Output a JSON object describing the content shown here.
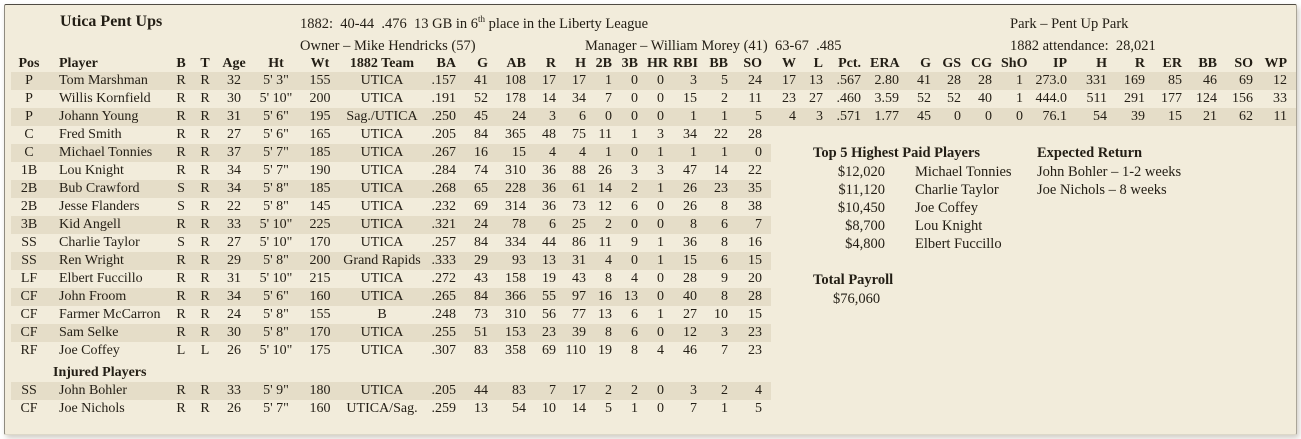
{
  "header": {
    "team_name": "Utica Pent Ups",
    "record_prefix": "1882:  40-44  .476  13 GB in 6",
    "record_sup": "th",
    "record_suffix": " place in the Liberty League",
    "park": "Park – Pent Up Park",
    "owner": "Owner – Mike Hendricks (57)",
    "manager": "Manager – William Morey (41)  63-67  .485",
    "attendance": "1882 attendance:  28,021"
  },
  "roster": {
    "columns": [
      "Pos",
      "Player",
      "B",
      "T",
      "Age",
      "Ht",
      "Wt",
      "1882 Team",
      "BA",
      "G",
      "AB",
      "R",
      "H",
      "2B",
      "3B",
      "HR",
      "RBI",
      "BB",
      "SO",
      "W",
      "L",
      "Pct.",
      "ERA",
      "G",
      "GS",
      "CG",
      "ShO",
      "IP",
      "H",
      "R",
      "ER",
      "BB",
      "SO",
      "WP"
    ],
    "rows": [
      [
        "P",
        "Tom Marshman",
        "R",
        "R",
        "32",
        "5' 3\"",
        "155",
        "UTICA",
        ".157",
        "41",
        "108",
        "17",
        "17",
        "1",
        "0",
        "0",
        "3",
        "5",
        "24",
        "17",
        "13",
        ".567",
        "2.80",
        "41",
        "28",
        "28",
        "1",
        "273.0",
        "331",
        "169",
        "85",
        "46",
        "69",
        "12"
      ],
      [
        "P",
        "Willis Kornfield",
        "R",
        "R",
        "30",
        "5' 10\"",
        "200",
        "UTICA",
        ".191",
        "52",
        "178",
        "14",
        "34",
        "7",
        "0",
        "0",
        "15",
        "2",
        "11",
        "23",
        "27",
        ".460",
        "3.59",
        "52",
        "52",
        "40",
        "1",
        "444.0",
        "511",
        "291",
        "177",
        "124",
        "156",
        "33"
      ],
      [
        "P",
        "Johann Young",
        "R",
        "R",
        "31",
        "5' 6\"",
        "195",
        "Sag./UTICA",
        ".250",
        "45",
        "24",
        "3",
        "6",
        "0",
        "0",
        "0",
        "1",
        "1",
        "5",
        "4",
        "3",
        ".571",
        "1.77",
        "45",
        "0",
        "0",
        "0",
        "76.1",
        "54",
        "39",
        "15",
        "21",
        "62",
        "11"
      ],
      [
        "C",
        "Fred Smith",
        "R",
        "R",
        "27",
        "5' 6\"",
        "165",
        "UTICA",
        ".205",
        "84",
        "365",
        "48",
        "75",
        "11",
        "1",
        "3",
        "34",
        "22",
        "28",
        "",
        "",
        "",
        "",
        "",
        "",
        "",
        "",
        "",
        "",
        "",
        "",
        "",
        "",
        ""
      ],
      [
        "C",
        "Michael Tonnies",
        "R",
        "R",
        "37",
        "5' 7\"",
        "185",
        "UTICA",
        ".267",
        "16",
        "15",
        "4",
        "4",
        "1",
        "0",
        "1",
        "1",
        "1",
        "0",
        "",
        "",
        "",
        "",
        "",
        "",
        "",
        "",
        "",
        "",
        "",
        "",
        "",
        "",
        ""
      ],
      [
        "1B",
        "Lou Knight",
        "R",
        "R",
        "34",
        "5' 7\"",
        "190",
        "UTICA",
        ".284",
        "74",
        "310",
        "36",
        "88",
        "26",
        "3",
        "3",
        "47",
        "14",
        "22",
        "",
        "",
        "",
        "",
        "",
        "",
        "",
        "",
        "",
        "",
        "",
        "",
        "",
        "",
        ""
      ],
      [
        "2B",
        "Bub Crawford",
        "S",
        "R",
        "34",
        "5' 8\"",
        "185",
        "UTICA",
        ".268",
        "65",
        "228",
        "36",
        "61",
        "14",
        "2",
        "1",
        "26",
        "23",
        "35",
        "",
        "",
        "",
        "",
        "",
        "",
        "",
        "",
        "",
        "",
        "",
        "",
        "",
        "",
        ""
      ],
      [
        "2B",
        "Jesse Flanders",
        "S",
        "R",
        "22",
        "5' 8\"",
        "145",
        "UTICA",
        ".232",
        "69",
        "314",
        "36",
        "73",
        "12",
        "6",
        "0",
        "26",
        "8",
        "38",
        "",
        "",
        "",
        "",
        "",
        "",
        "",
        "",
        "",
        "",
        "",
        "",
        "",
        "",
        ""
      ],
      [
        "3B",
        "Kid Angell",
        "R",
        "R",
        "33",
        "5' 10\"",
        "225",
        "UTICA",
        ".321",
        "24",
        "78",
        "6",
        "25",
        "2",
        "0",
        "0",
        "8",
        "6",
        "7",
        "",
        "",
        "",
        "",
        "",
        "",
        "",
        "",
        "",
        "",
        "",
        "",
        "",
        "",
        ""
      ],
      [
        "SS",
        "Charlie Taylor",
        "S",
        "R",
        "27",
        "5' 10\"",
        "170",
        "UTICA",
        ".257",
        "84",
        "334",
        "44",
        "86",
        "11",
        "9",
        "1",
        "36",
        "8",
        "16",
        "",
        "",
        "",
        "",
        "",
        "",
        "",
        "",
        "",
        "",
        "",
        "",
        "",
        "",
        ""
      ],
      [
        "SS",
        "Ren Wright",
        "R",
        "R",
        "29",
        "5' 8\"",
        "200",
        "Grand Rapids",
        ".333",
        "29",
        "93",
        "13",
        "31",
        "4",
        "0",
        "1",
        "15",
        "6",
        "15",
        "",
        "",
        "",
        "",
        "",
        "",
        "",
        "",
        "",
        "",
        "",
        "",
        "",
        "",
        ""
      ],
      [
        "LF",
        "Elbert Fuccillo",
        "R",
        "R",
        "31",
        "5' 10\"",
        "215",
        "UTICA",
        ".272",
        "43",
        "158",
        "19",
        "43",
        "8",
        "4",
        "0",
        "28",
        "9",
        "20",
        "",
        "",
        "",
        "",
        "",
        "",
        "",
        "",
        "",
        "",
        "",
        "",
        "",
        "",
        ""
      ],
      [
        "CF",
        "John Froom",
        "R",
        "R",
        "34",
        "5' 6\"",
        "160",
        "UTICA",
        ".265",
        "84",
        "366",
        "55",
        "97",
        "16",
        "13",
        "0",
        "40",
        "8",
        "28",
        "",
        "",
        "",
        "",
        "",
        "",
        "",
        "",
        "",
        "",
        "",
        "",
        "",
        "",
        ""
      ],
      [
        "CF",
        "Farmer McCarron",
        "R",
        "R",
        "24",
        "5' 8\"",
        "155",
        "B",
        ".248",
        "73",
        "310",
        "56",
        "77",
        "13",
        "6",
        "1",
        "27",
        "10",
        "15",
        "",
        "",
        "",
        "",
        "",
        "",
        "",
        "",
        "",
        "",
        "",
        "",
        "",
        "",
        ""
      ],
      [
        "CF",
        "Sam Selke",
        "R",
        "R",
        "30",
        "5' 8\"",
        "170",
        "UTICA",
        ".255",
        "51",
        "153",
        "23",
        "39",
        "8",
        "6",
        "0",
        "12",
        "3",
        "23",
        "",
        "",
        "",
        "",
        "",
        "",
        "",
        "",
        "",
        "",
        "",
        "",
        "",
        "",
        ""
      ],
      [
        "RF",
        "Joe Coffey",
        "L",
        "L",
        "26",
        "5' 10\"",
        "175",
        "UTICA",
        ".307",
        "83",
        "358",
        "69",
        "110",
        "19",
        "8",
        "4",
        "46",
        "7",
        "23",
        "",
        "",
        "",
        "",
        "",
        "",
        "",
        "",
        "",
        "",
        "",
        "",
        "",
        "",
        ""
      ]
    ],
    "injured_title": "Injured Players",
    "injured_rows": [
      [
        "SS",
        "John Bohler",
        "R",
        "R",
        "33",
        "5' 9\"",
        "180",
        "UTICA",
        ".205",
        "44",
        "83",
        "7",
        "17",
        "2",
        "2",
        "0",
        "3",
        "2",
        "4",
        "",
        "",
        "",
        "",
        "",
        "",
        "",
        "",
        "",
        "",
        "",
        "",
        "",
        "",
        ""
      ],
      [
        "CF",
        "Joe Nichols",
        "R",
        "R",
        "26",
        "5' 7\"",
        "160",
        "UTICA/Sag.",
        ".259",
        "13",
        "54",
        "10",
        "14",
        "5",
        "1",
        "0",
        "7",
        "1",
        "5",
        "",
        "",
        "",
        "",
        "",
        "",
        "",
        "",
        "",
        "",
        "",
        "",
        "",
        "",
        ""
      ]
    ]
  },
  "panel": {
    "paid_title": "Top 5 Highest Paid Players",
    "paid": [
      {
        "amount": "$12,020",
        "name": "Michael Tonnies"
      },
      {
        "amount": "$11,120",
        "name": "Charlie Taylor"
      },
      {
        "amount": "$10,450",
        "name": "Joe Coffey"
      },
      {
        "amount": "$8,700",
        "name": "Lou Knight"
      },
      {
        "amount": "$4,800",
        "name": "Elbert Fuccillo"
      }
    ],
    "expected_title": "Expected Return",
    "expected": [
      "John Bohler – 1-2 weeks",
      "Joe Nichols – 8 weeks"
    ],
    "payroll_title": "Total Payroll",
    "payroll_total": "$76,060"
  },
  "colors": {
    "paper": "#f2ecdb",
    "stripe": "#e5ddc8",
    "text": "#231e15",
    "border_dark": "#4f4b43"
  }
}
